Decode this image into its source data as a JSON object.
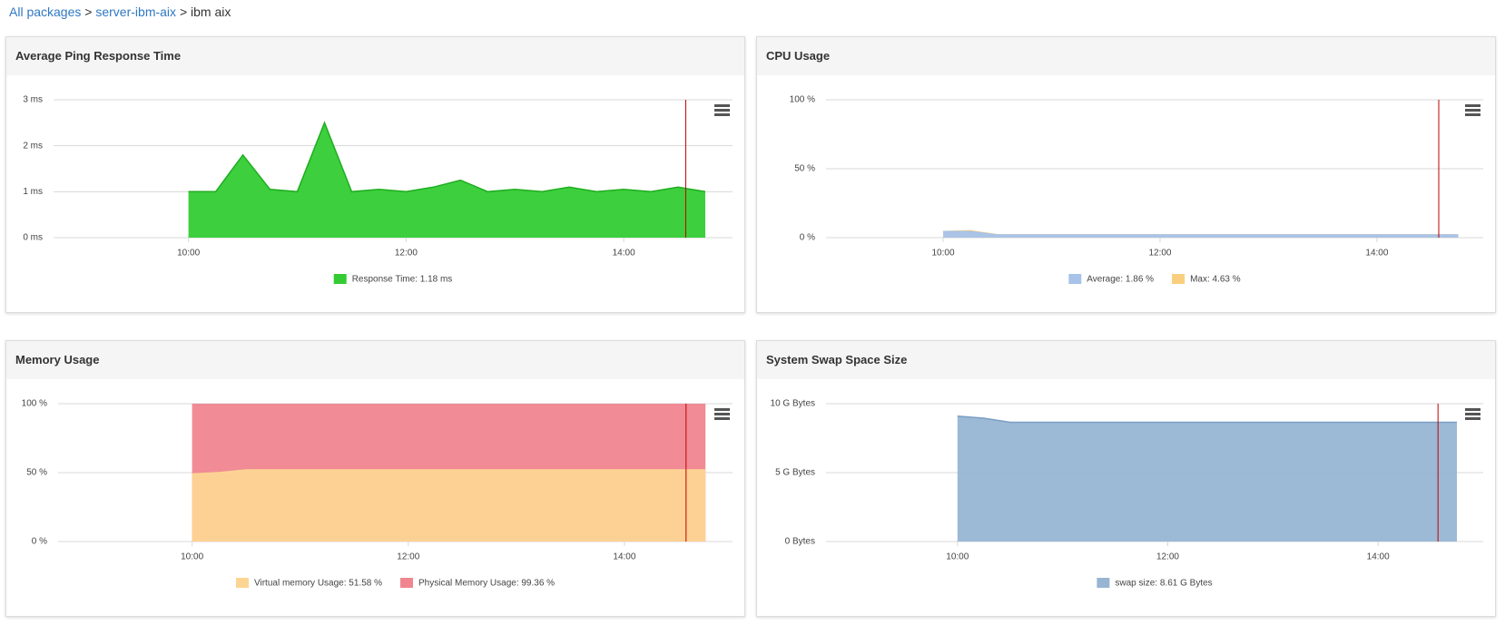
{
  "breadcrumb": {
    "links": [
      "All packages",
      "server-ibm-aix"
    ],
    "separator": ">",
    "current": "ibm aix"
  },
  "chart_data": [
    {
      "type": "area",
      "title": "Average Ping Response Time",
      "x": [
        10,
        10.25,
        10.5,
        10.75,
        11,
        11.25,
        11.5,
        11.75,
        12,
        12.25,
        12.5,
        12.75,
        13,
        13.25,
        13.5,
        13.75,
        14,
        14.25,
        14.5,
        14.75
      ],
      "series": [
        {
          "name": "Response Time: 1.18 ms",
          "color": "#33cc33",
          "line_color": "#1fae1f",
          "values": [
            1.0,
            1.0,
            1.8,
            1.05,
            1.0,
            2.5,
            1.0,
            1.05,
            1.0,
            1.1,
            1.25,
            1.0,
            1.05,
            1.0,
            1.1,
            1.0,
            1.05,
            1.0,
            1.1,
            1.0
          ]
        }
      ],
      "xlim": [
        8.76,
        15.0
      ],
      "xticks": [
        {
          "value": 10,
          "label": "10:00"
        },
        {
          "value": 12,
          "label": "12:00"
        },
        {
          "value": 14,
          "label": "14:00"
        }
      ],
      "ylim": [
        0,
        3
      ],
      "yticks": [
        {
          "value": 0,
          "label": "0 ms"
        },
        {
          "value": 1,
          "label": "1 ms"
        },
        {
          "value": 2,
          "label": "2 ms"
        },
        {
          "value": 3,
          "label": "3 ms"
        }
      ],
      "grid": true,
      "marker_x": 14.57,
      "marker_color": "#c00000"
    },
    {
      "type": "area",
      "title": "CPU Usage",
      "x": [
        10,
        10.25,
        10.5,
        10.75,
        11,
        11.25,
        11.5,
        11.75,
        12,
        12.25,
        12.5,
        12.75,
        13,
        13.25,
        13.5,
        13.75,
        14,
        14.25,
        14.5,
        14.75
      ],
      "series": [
        {
          "name": "Average: 1.86 %",
          "color": "#a7c3ea",
          "line_color": "#a7c3ea",
          "values": [
            4.5,
            4.5,
            2,
            2,
            2,
            2,
            2,
            2,
            2,
            2,
            2,
            2,
            2,
            2,
            2,
            2,
            2,
            2,
            2,
            2
          ]
        },
        {
          "name": "Max: 4.63 %",
          "color": "#f9cf7f",
          "line_color": "#f9cf7f",
          "values": [
            4.5,
            5,
            2.2,
            2.2,
            2.2,
            2.2,
            2.2,
            2.2,
            2.2,
            2.2,
            2.2,
            2.2,
            2.2,
            2.2,
            2.2,
            2.2,
            2.2,
            2.2,
            2.2,
            2.2
          ]
        }
      ],
      "xlim": [
        8.92,
        14.98
      ],
      "xticks": [
        {
          "value": 10,
          "label": "10:00"
        },
        {
          "value": 12,
          "label": "12:00"
        },
        {
          "value": 14,
          "label": "14:00"
        }
      ],
      "ylim": [
        0,
        100
      ],
      "yticks": [
        {
          "value": 0,
          "label": "0 %"
        },
        {
          "value": 50,
          "label": "50 %"
        },
        {
          "value": 100,
          "label": "100 %"
        }
      ],
      "grid": true,
      "marker_x": 14.57,
      "marker_color": "#c00000"
    },
    {
      "type": "area",
      "title": "Memory Usage",
      "x": [
        10,
        10.25,
        10.5,
        10.75,
        11,
        11.25,
        11.5,
        11.75,
        12,
        12.25,
        12.5,
        12.75,
        13,
        13.25,
        13.5,
        13.75,
        14,
        14.25,
        14.5,
        14.75
      ],
      "series": [
        {
          "name": "Virtual memory Usage: 51.58 %",
          "color": "#fdd592",
          "line_color": "#fdd592",
          "values": [
            49,
            50,
            52,
            52,
            52,
            52,
            52,
            52,
            52,
            52,
            52,
            52,
            52,
            52,
            52,
            52,
            52,
            52,
            52,
            52
          ]
        },
        {
          "name": "Physical Memory Usage: 99.36 %",
          "color": "#f08590",
          "line_color": "#f08590",
          "values": [
            99.4,
            99.4,
            99.4,
            99.4,
            99.4,
            99.4,
            99.4,
            99.4,
            99.4,
            99.4,
            99.4,
            99.4,
            99.4,
            99.4,
            99.4,
            99.4,
            99.4,
            99.4,
            99.4,
            99.4
          ]
        }
      ],
      "xlim": [
        8.76,
        15.0
      ],
      "xticks": [
        {
          "value": 10,
          "label": "10:00"
        },
        {
          "value": 12,
          "label": "12:00"
        },
        {
          "value": 14,
          "label": "14:00"
        }
      ],
      "ylim": [
        0,
        100
      ],
      "yticks": [
        {
          "value": 0,
          "label": "0 %"
        },
        {
          "value": 50,
          "label": "50 %"
        },
        {
          "value": 100,
          "label": "100 %"
        }
      ],
      "grid": true,
      "marker_x": 14.57,
      "marker_color": "#c00000"
    },
    {
      "type": "area",
      "title": "System Swap Space Size",
      "x": [
        10,
        10.25,
        10.5,
        10.75,
        11,
        11.25,
        11.5,
        11.75,
        12,
        12.25,
        12.5,
        12.75,
        13,
        13.25,
        13.5,
        13.75,
        14,
        14.25,
        14.5,
        14.75
      ],
      "series": [
        {
          "name": "swap size: 8.61 G Bytes",
          "color": "#97b5d3",
          "line_color": "#7a9fc6",
          "values": [
            9.1,
            8.95,
            8.65,
            8.65,
            8.65,
            8.65,
            8.65,
            8.65,
            8.65,
            8.65,
            8.65,
            8.65,
            8.65,
            8.65,
            8.65,
            8.65,
            8.65,
            8.65,
            8.65,
            8.65
          ]
        }
      ],
      "xlim": [
        8.75,
        15.0
      ],
      "xticks": [
        {
          "value": 10,
          "label": "10:00"
        },
        {
          "value": 12,
          "label": "12:00"
        },
        {
          "value": 14,
          "label": "14:00"
        }
      ],
      "ylim": [
        0,
        10
      ],
      "yticks": [
        {
          "value": 0,
          "label": "0 Bytes"
        },
        {
          "value": 5,
          "label": "5 G Bytes"
        },
        {
          "value": 10,
          "label": "10 G Bytes"
        }
      ],
      "grid": true,
      "marker_x": 14.57,
      "marker_color": "#c00000"
    }
  ]
}
